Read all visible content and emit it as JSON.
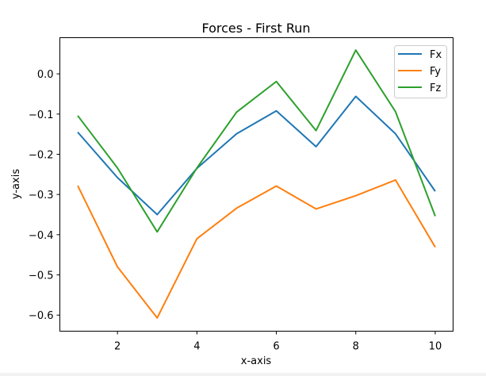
{
  "chart_data": {
    "type": "line",
    "title": "Forces - First Run",
    "xlabel": "x-axis",
    "ylabel": "y-axis",
    "x": [
      1,
      2,
      3,
      4,
      5,
      6,
      7,
      8,
      9,
      10
    ],
    "series": [
      {
        "name": "Fx",
        "color": "#1f77b4",
        "values": [
          -0.145,
          -0.258,
          -0.35,
          -0.235,
          -0.149,
          -0.092,
          -0.181,
          -0.056,
          -0.149,
          -0.292
        ]
      },
      {
        "name": "Fy",
        "color": "#ff7f0e",
        "values": [
          -0.278,
          -0.48,
          -0.607,
          -0.41,
          -0.334,
          -0.279,
          -0.336,
          -0.303,
          -0.264,
          -0.431
        ]
      },
      {
        "name": "Fz",
        "color": "#2ca02c",
        "values": [
          -0.104,
          -0.234,
          -0.393,
          -0.234,
          -0.095,
          -0.019,
          -0.141,
          0.059,
          -0.094,
          -0.354
        ]
      }
    ],
    "xticks": [
      2,
      4,
      6,
      8,
      10
    ],
    "xtick_labels": [
      "2",
      "4",
      "6",
      "8",
      "10"
    ],
    "yticks": [
      0.0,
      -0.1,
      -0.2,
      -0.3,
      -0.4,
      -0.5,
      -0.6
    ],
    "ytick_labels": [
      "0.0",
      "−0.1",
      "−0.2",
      "−0.3",
      "−0.4",
      "−0.5",
      "−0.6"
    ],
    "xlim": [
      0.55,
      10.45
    ],
    "ylim": [
      -0.64,
      0.09
    ],
    "grid": false,
    "legend_position": "top-right"
  }
}
